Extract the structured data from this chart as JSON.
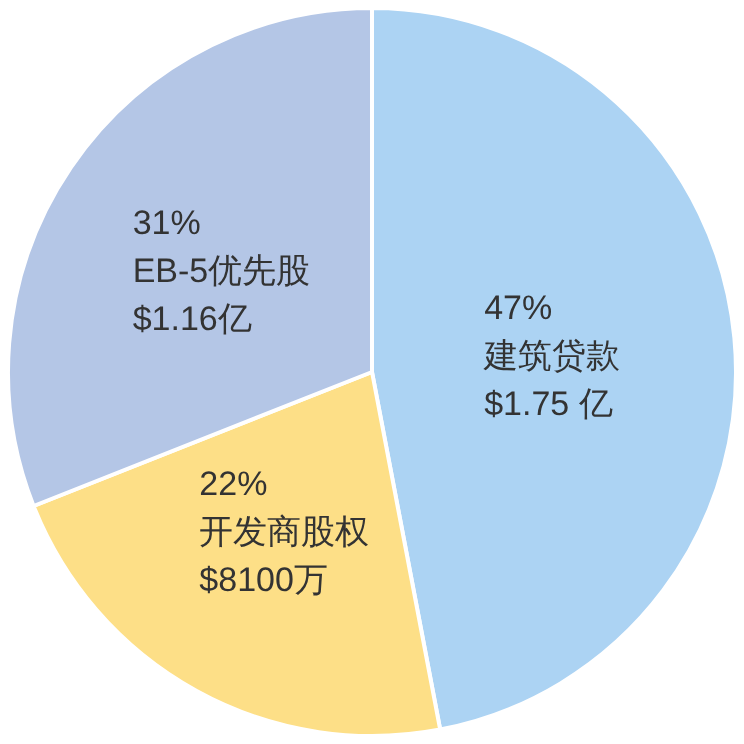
{
  "chart_data": {
    "type": "pie",
    "categories": [
      "建筑贷款\n$1.75 亿",
      "开发商股权\n$8100万",
      "EB-5优先股\n$1.16亿"
    ],
    "values": [
      47,
      22,
      31
    ],
    "colors": [
      "#acd3f3",
      "#fddf87",
      "#b4c6e6"
    ],
    "value_labels": [
      "47%",
      "22%",
      "31%"
    ]
  }
}
